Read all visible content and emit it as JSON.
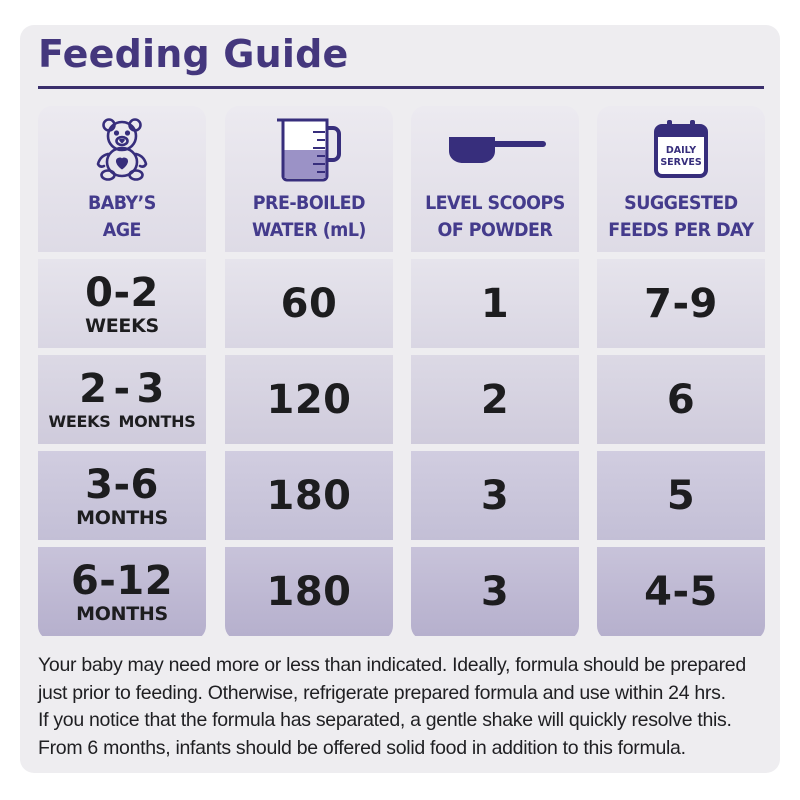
{
  "title": "Feeding Guide",
  "colors": {
    "title": "#44377d",
    "header_text": "#443b8c",
    "icon": "#372e7c",
    "body_text": "#1d1d1f",
    "card_bg": "#eeedf0"
  },
  "columns": [
    {
      "label_line1": "BABY’S",
      "label_line2": "AGE",
      "icon": "teddy-bear-icon"
    },
    {
      "label_line1": "PRE-BOILED",
      "label_line2": "WATER (mL)",
      "icon": "measuring-jug-icon"
    },
    {
      "label_line1": "LEVEL SCOOPS",
      "label_line2": "OF POWDER",
      "icon": "scoop-icon"
    },
    {
      "label_line1": "SUGGESTED",
      "label_line2": "FEEDS PER DAY",
      "icon": "calendar-icon",
      "icon_text_line1": "DAILY",
      "icon_text_line2": "SERVES"
    }
  ],
  "rows": [
    {
      "age_value": "0-2",
      "age_unit": "WEEKS",
      "water": "60",
      "scoops": "1",
      "feeds": "7-9"
    },
    {
      "age_from": "2",
      "age_dash": "-",
      "age_to": "3",
      "age_from_unit": "WEEKS",
      "age_to_unit": "MONTHS",
      "water": "120",
      "scoops": "2",
      "feeds": "6"
    },
    {
      "age_value": "3-6",
      "age_unit": "MONTHS",
      "water": "180",
      "scoops": "3",
      "feeds": "5"
    },
    {
      "age_value": "6-12",
      "age_unit": "MONTHS",
      "water": "180",
      "scoops": "3",
      "feeds": "4-5"
    }
  ],
  "footnote": [
    "Your baby may need more or less than indicated. Ideally, formula should be prepared",
    "just prior to feeding. Otherwise, refrigerate prepared formula and use within 24 hrs.",
    "If you notice that the formula has separated, a gentle shake will quickly resolve this.",
    "From 6 months, infants should be offered solid food in addition to this formula."
  ]
}
